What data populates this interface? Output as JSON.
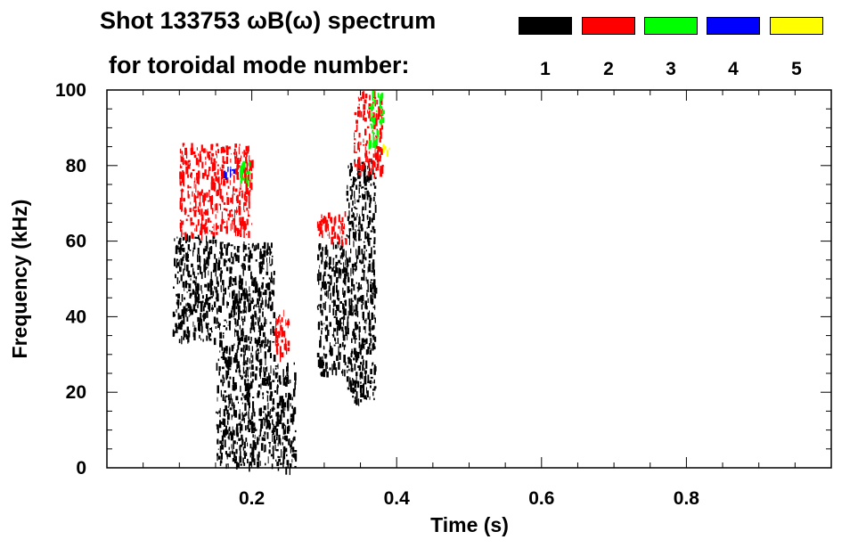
{
  "chart_data": {
    "type": "heatmap",
    "title": "Shot 133753 ωB(ω) spectrum",
    "legend_title": "for toroidal mode number:",
    "legend_placement": "top-right",
    "xlabel": "Time (s)",
    "ylabel": "Frequency (kHz)",
    "xlim": [
      0.0,
      1.0
    ],
    "ylim": [
      0,
      100
    ],
    "x_ticks": [
      0.2,
      0.4,
      0.6,
      0.8
    ],
    "x_tick_labels": [
      "0.2",
      "0.4",
      "0.6",
      "0.8"
    ],
    "y_ticks": [
      0,
      20,
      40,
      60,
      80,
      100
    ],
    "y_tick_labels": [
      "0",
      "20",
      "40",
      "60",
      "80",
      "100"
    ],
    "grid": false,
    "modes": [
      {
        "label": "1",
        "color": "#000000"
      },
      {
        "label": "2",
        "color": "#ff0000"
      },
      {
        "label": "3",
        "color": "#00ff00"
      },
      {
        "label": "4",
        "color": "#0000ff"
      },
      {
        "label": "5",
        "color": "#ffff00"
      }
    ],
    "regions": [
      {
        "mode": "1",
        "t": [
          0.09,
          0.15
        ],
        "f": [
          34,
          62
        ]
      },
      {
        "mode": "1",
        "t": [
          0.15,
          0.23
        ],
        "f": [
          1,
          60
        ]
      },
      {
        "mode": "1",
        "t": [
          0.23,
          0.26
        ],
        "f": [
          0,
          28
        ]
      },
      {
        "mode": "1",
        "t": [
          0.29,
          0.33
        ],
        "f": [
          25,
          60
        ]
      },
      {
        "mode": "1",
        "t": [
          0.33,
          0.37
        ],
        "f": [
          18,
          82
        ]
      },
      {
        "mode": "2",
        "t": [
          0.1,
          0.2
        ],
        "f": [
          62,
          86
        ]
      },
      {
        "mode": "2",
        "t": [
          0.29,
          0.33
        ],
        "f": [
          60,
          68
        ]
      },
      {
        "mode": "2",
        "t": [
          0.34,
          0.38
        ],
        "f": [
          78,
          100
        ]
      },
      {
        "mode": "2",
        "t": [
          0.23,
          0.25
        ],
        "f": [
          30,
          42
        ]
      },
      {
        "mode": "3",
        "t": [
          0.18,
          0.2
        ],
        "f": [
          76,
          82
        ]
      },
      {
        "mode": "3",
        "t": [
          0.36,
          0.38
        ],
        "f": [
          86,
          100
        ]
      },
      {
        "mode": "4",
        "t": [
          0.16,
          0.18
        ],
        "f": [
          78,
          80
        ]
      },
      {
        "mode": "5",
        "t": [
          0.38,
          0.39
        ],
        "f": [
          84,
          86
        ]
      }
    ]
  }
}
